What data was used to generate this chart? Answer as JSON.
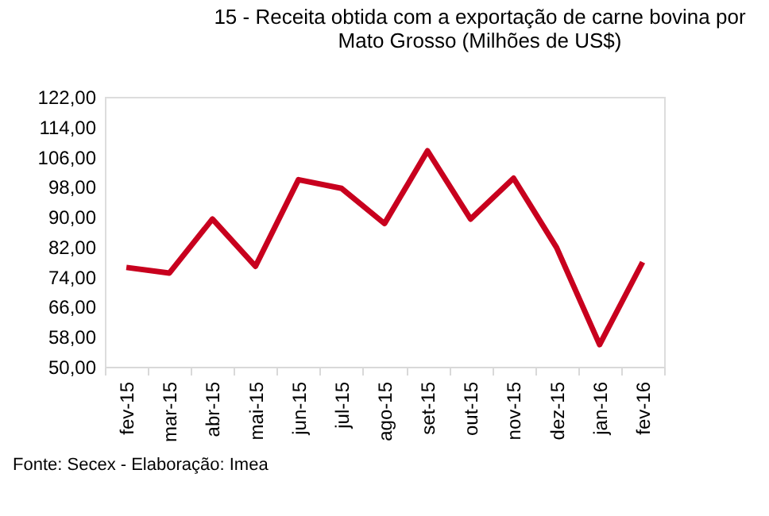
{
  "chart_data": {
    "type": "line",
    "title": [
      "15 - Receita obtida com a exportação de carne bovina por",
      "Mato Grosso (Milhões de US$)"
    ],
    "categories": [
      "fev-15",
      "mar-15",
      "abr-15",
      "mai-15",
      "jun-15",
      "jul-15",
      "ago-15",
      "set-15",
      "out-15",
      "nov-15",
      "dez-15",
      "jan-16",
      "fev-16"
    ],
    "series": [
      {
        "color": "#c8001e",
        "values": [
          76.5,
          75.0,
          89.4,
          76.8,
          99.9,
          97.6,
          88.2,
          107.6,
          89.4,
          100.3,
          81.8,
          55.9,
          77.9
        ]
      }
    ],
    "ylim": [
      50,
      122
    ],
    "yticks": [
      {
        "value": 50,
        "label": "50,00"
      },
      {
        "value": 58,
        "label": "58,00"
      },
      {
        "value": 66,
        "label": "66,00"
      },
      {
        "value": 74,
        "label": "74,00"
      },
      {
        "value": 82,
        "label": "82,00"
      },
      {
        "value": 90,
        "label": "90,00"
      },
      {
        "value": 98,
        "label": "98,00"
      },
      {
        "value": 106,
        "label": "106,00"
      },
      {
        "value": 114,
        "label": "114,00"
      },
      {
        "value": 122,
        "label": "122,00"
      }
    ],
    "grid": false,
    "legend": false,
    "marker": "none",
    "line_style": "solid",
    "annotations": [
      "Fonte: Secex - Elaboração: Imea"
    ]
  }
}
